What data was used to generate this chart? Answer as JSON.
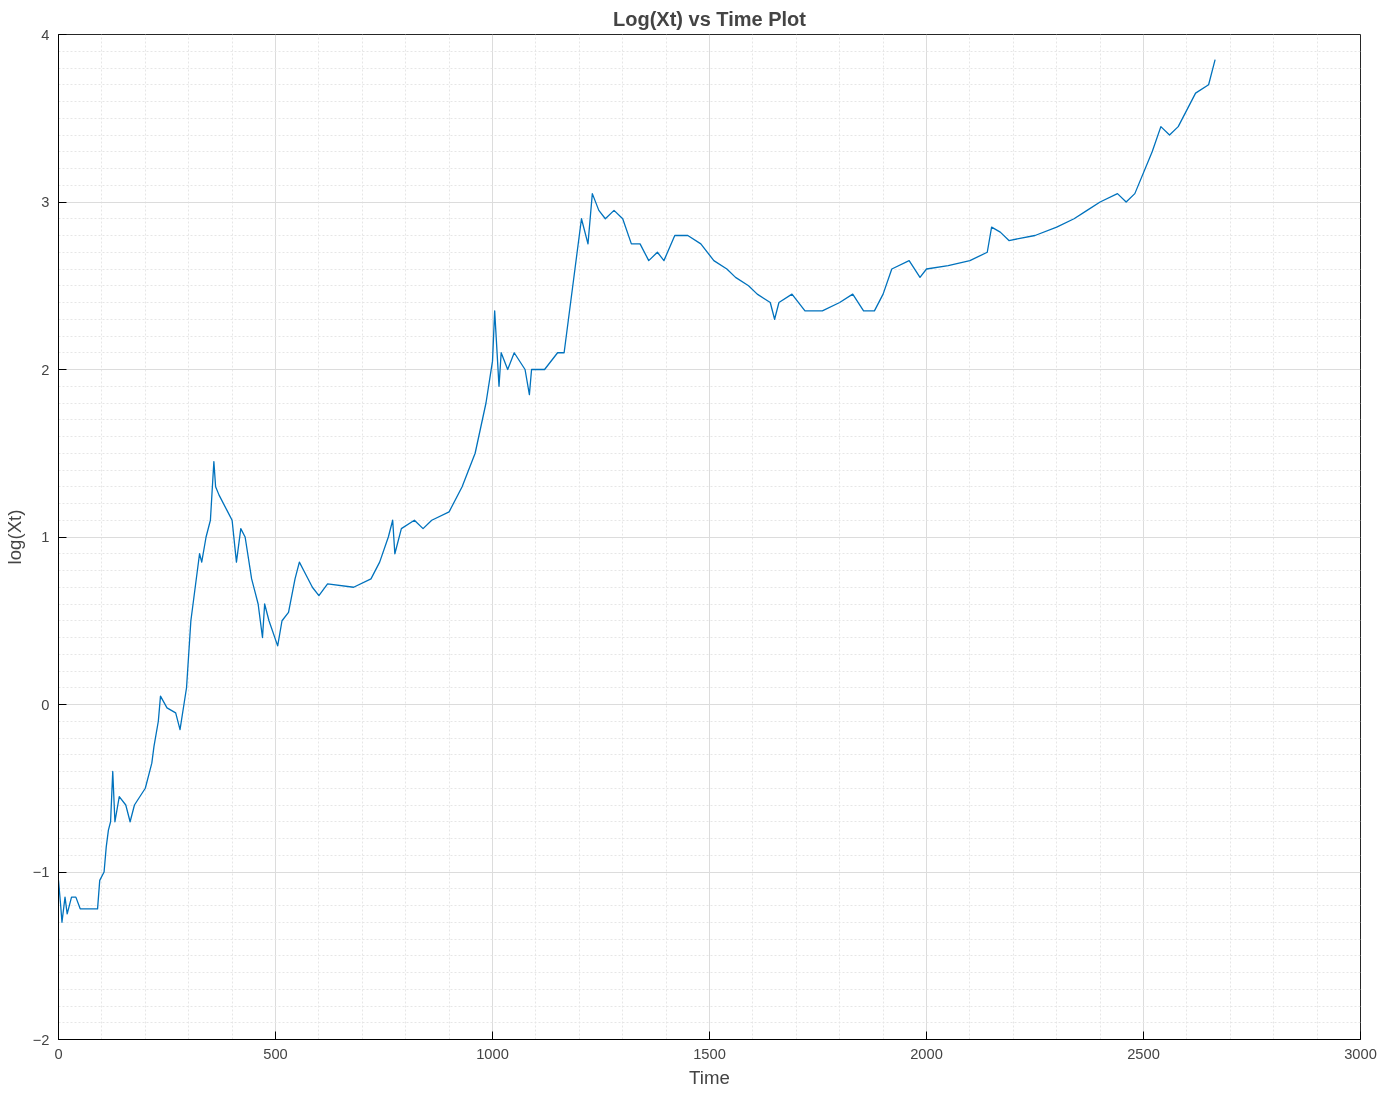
{
  "chart_data": {
    "type": "line",
    "title": "Log(Xt) vs Time Plot",
    "xlabel": "Time",
    "ylabel": "log(Xt)",
    "xlim": [
      0,
      3000
    ],
    "xticks": [
      0,
      500,
      1000,
      1500,
      2000,
      2500,
      3000
    ],
    "ylim": [
      -2,
      4
    ],
    "yticks": [
      -2,
      -1,
      0,
      1,
      2,
      3,
      4
    ],
    "grid": true,
    "series": [
      {
        "color": "#0072bd",
        "x": [
          0,
          5,
          8,
          15,
          20,
          30,
          40,
          50,
          90,
          95,
          105,
          110,
          115,
          120,
          125,
          130,
          140,
          155,
          165,
          175,
          200,
          215,
          220,
          230,
          235,
          250,
          270,
          280,
          295,
          305,
          315,
          325,
          330,
          340,
          350,
          358,
          362,
          370,
          390,
          400,
          410,
          420,
          430,
          445,
          460,
          470,
          475,
          485,
          505,
          515,
          530,
          545,
          555,
          565,
          585,
          600,
          620,
          680,
          720,
          740,
          760,
          770,
          775,
          790,
          820,
          840,
          860,
          900,
          930,
          960,
          985,
          1000,
          1005,
          1015,
          1020,
          1035,
          1050,
          1075,
          1085,
          1090,
          1120,
          1150,
          1165,
          1175,
          1190,
          1205,
          1220,
          1230,
          1245,
          1260,
          1280,
          1300,
          1320,
          1340,
          1360,
          1380,
          1395,
          1420,
          1450,
          1480,
          1510,
          1540,
          1560,
          1590,
          1610,
          1640,
          1650,
          1660,
          1690,
          1720,
          1760,
          1800,
          1830,
          1855,
          1880,
          1900,
          1920,
          1960,
          1985,
          2000,
          2050,
          2100,
          2140,
          2150,
          2170,
          2190,
          2250,
          2300,
          2340,
          2370,
          2400,
          2440,
          2460,
          2480,
          2520,
          2540,
          2560,
          2580,
          2600,
          2620,
          2650,
          2665
        ],
        "values": [
          -1.05,
          -1.2,
          -1.3,
          -1.15,
          -1.25,
          -1.15,
          -1.15,
          -1.22,
          -1.22,
          -1.05,
          -1.0,
          -0.85,
          -0.75,
          -0.7,
          -0.4,
          -0.7,
          -0.55,
          -0.6,
          -0.7,
          -0.6,
          -0.5,
          -0.35,
          -0.25,
          -0.1,
          0.05,
          -0.02,
          -0.05,
          -0.15,
          0.1,
          0.5,
          0.7,
          0.9,
          0.85,
          1.0,
          1.1,
          1.45,
          1.3,
          1.25,
          1.15,
          1.1,
          0.85,
          1.05,
          1.0,
          0.75,
          0.6,
          0.4,
          0.6,
          0.5,
          0.35,
          0.5,
          0.55,
          0.75,
          0.85,
          0.8,
          0.7,
          0.65,
          0.72,
          0.7,
          0.75,
          0.85,
          1.0,
          1.1,
          0.9,
          1.05,
          1.1,
          1.05,
          1.1,
          1.15,
          1.3,
          1.5,
          1.8,
          2.05,
          2.35,
          1.9,
          2.1,
          2.0,
          2.1,
          2.0,
          1.85,
          2.0,
          2.0,
          2.1,
          2.1,
          2.3,
          2.6,
          2.9,
          2.75,
          3.05,
          2.95,
          2.9,
          2.95,
          2.9,
          2.75,
          2.75,
          2.65,
          2.7,
          2.65,
          2.8,
          2.8,
          2.75,
          2.65,
          2.6,
          2.55,
          2.5,
          2.45,
          2.4,
          2.3,
          2.4,
          2.45,
          2.35,
          2.35,
          2.4,
          2.45,
          2.35,
          2.35,
          2.45,
          2.6,
          2.65,
          2.55,
          2.6,
          2.62,
          2.65,
          2.7,
          2.85,
          2.82,
          2.77,
          2.8,
          2.85,
          2.9,
          2.95,
          3.0,
          3.05,
          3.0,
          3.05,
          3.3,
          3.45,
          3.4,
          3.45,
          3.55,
          3.65,
          3.7,
          3.85
        ]
      }
    ]
  }
}
